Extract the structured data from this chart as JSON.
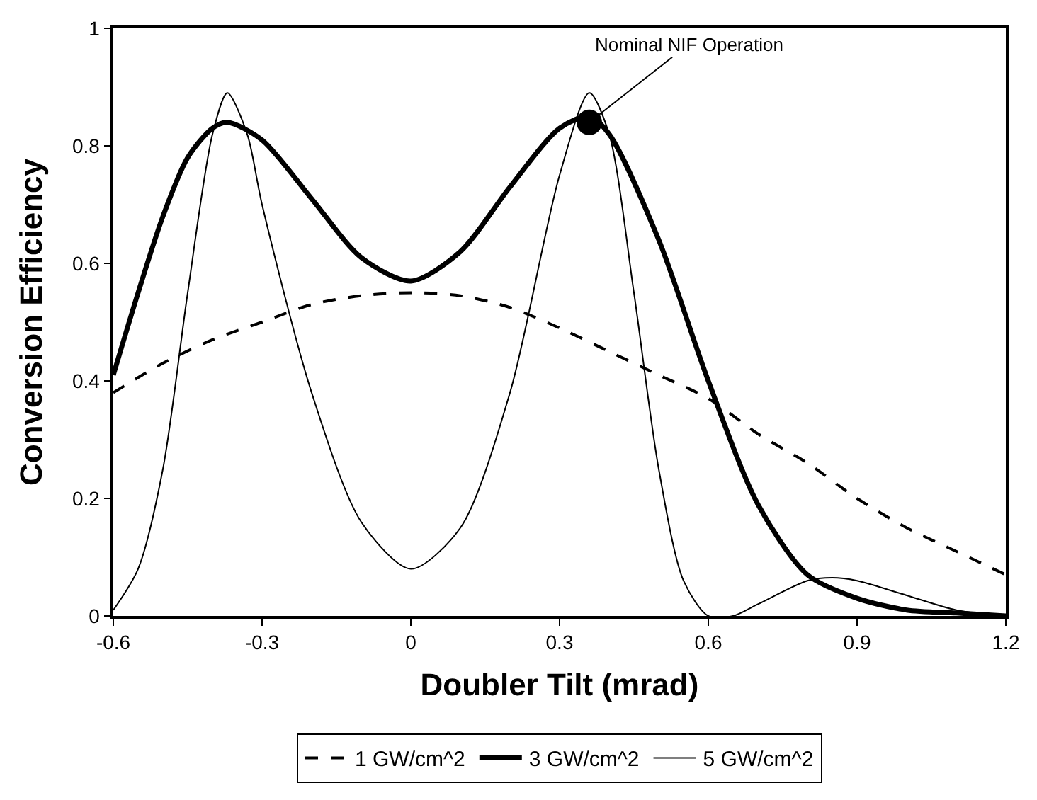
{
  "chart_data": {
    "type": "line",
    "xlabel": "Doubler Tilt (mrad)",
    "ylabel": "Conversion Efficiency",
    "xlim": [
      -0.6,
      1.2
    ],
    "xticks": [
      {
        "value": -0.6,
        "label": "-0.6"
      },
      {
        "value": -0.3,
        "label": "-0.3"
      },
      0,
      0.3,
      0.6,
      0.9,
      1.2
    ],
    "ylim": [
      0,
      1
    ],
    "yticks": [
      0,
      0.2,
      0.4,
      0.6,
      0.8,
      1
    ],
    "legend": "bottom",
    "marker": "none",
    "series": [
      {
        "name": "1 GW/cm^2",
        "color": "#000000",
        "line_style": "dashed",
        "x": [
          -0.6,
          -0.5,
          -0.4,
          -0.3,
          -0.2,
          -0.1,
          0,
          0.1,
          0.2,
          0.3,
          0.4,
          0.5,
          0.6,
          0.7,
          0.8,
          0.9,
          1.0,
          1.1,
          1.2
        ],
        "values": [
          0.38,
          0.43,
          0.47,
          0.5,
          0.53,
          0.545,
          0.55,
          0.545,
          0.525,
          0.49,
          0.45,
          0.41,
          0.37,
          0.31,
          0.26,
          0.2,
          0.15,
          0.11,
          0.07
        ]
      },
      {
        "name": "3 GW/cm^2",
        "color": "#000000",
        "line_style": "solid",
        "x": [
          -0.6,
          -0.55,
          -0.5,
          -0.45,
          -0.4,
          -0.37,
          -0.3,
          -0.2,
          -0.1,
          0,
          0.1,
          0.2,
          0.3,
          0.36,
          0.4,
          0.5,
          0.6,
          0.7,
          0.8,
          0.9,
          1.0,
          1.1,
          1.2
        ],
        "values": [
          0.41,
          0.55,
          0.68,
          0.78,
          0.83,
          0.84,
          0.81,
          0.71,
          0.61,
          0.57,
          0.62,
          0.73,
          0.83,
          0.85,
          0.82,
          0.64,
          0.4,
          0.19,
          0.07,
          0.03,
          0.01,
          0.005,
          0
        ]
      },
      {
        "name": "5 GW/cm^2",
        "color": "#000000",
        "line_style": "solid",
        "x": [
          -0.6,
          -0.55,
          -0.5,
          -0.45,
          -0.4,
          -0.37,
          -0.33,
          -0.3,
          -0.2,
          -0.1,
          0,
          0.1,
          0.2,
          0.3,
          0.36,
          0.4,
          0.45,
          0.5,
          0.55,
          0.6,
          0.65,
          0.7,
          0.8,
          0.85,
          0.9,
          1.0,
          1.1,
          1.2
        ],
        "values": [
          0.01,
          0.08,
          0.25,
          0.55,
          0.82,
          0.89,
          0.82,
          0.7,
          0.38,
          0.16,
          0.08,
          0.15,
          0.38,
          0.75,
          0.89,
          0.82,
          0.55,
          0.25,
          0.06,
          0,
          0,
          0.02,
          0.06,
          0.065,
          0.06,
          0.035,
          0.01,
          0
        ]
      },
      {
        "type": "scatter",
        "color": "#000000",
        "marker": "circle",
        "x": [
          0.36
        ],
        "values": [
          0.84
        ]
      }
    ],
    "annotations": [
      {
        "text": "Nominal NIF Operation",
        "x": 0.36,
        "y": 0.84
      }
    ]
  }
}
